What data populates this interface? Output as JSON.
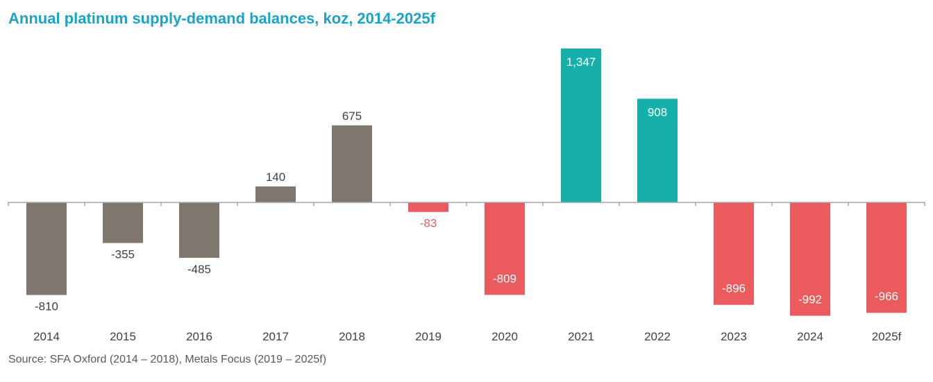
{
  "chart_data": {
    "type": "bar",
    "title": "Annual platinum supply-demand balances, koz, 2014-2025f",
    "source": "Source: SFA Oxford (2014 – 2018), Metals Focus (2019 – 2025f)",
    "xlabel": "",
    "ylabel": "koz",
    "ylim": [
      -1100,
      1450
    ],
    "grid": false,
    "categories": [
      "2014",
      "2015",
      "2016",
      "2017",
      "2018",
      "2019",
      "2020",
      "2021",
      "2022",
      "2023",
      "2024",
      "2025f"
    ],
    "values": [
      -810,
      -355,
      -485,
      140,
      675,
      -83,
      -809,
      1347,
      908,
      -896,
      -992,
      -966
    ],
    "labels": [
      "-810",
      "-355",
      "-485",
      "140",
      "675",
      "-83",
      "-809",
      "1,347",
      "908",
      "-896",
      "-992",
      "-966"
    ],
    "bar_groups": [
      "hist",
      "hist",
      "hist",
      "hist",
      "hist",
      "deficit",
      "deficit",
      "surplus",
      "surplus",
      "deficit",
      "deficit",
      "deficit"
    ],
    "colors": {
      "hist": "#7f766e",
      "deficit": "#eb5b5e",
      "surplus": "#14b0a9",
      "axis": "#a6a6a6",
      "title": "#1aa3c9"
    }
  }
}
